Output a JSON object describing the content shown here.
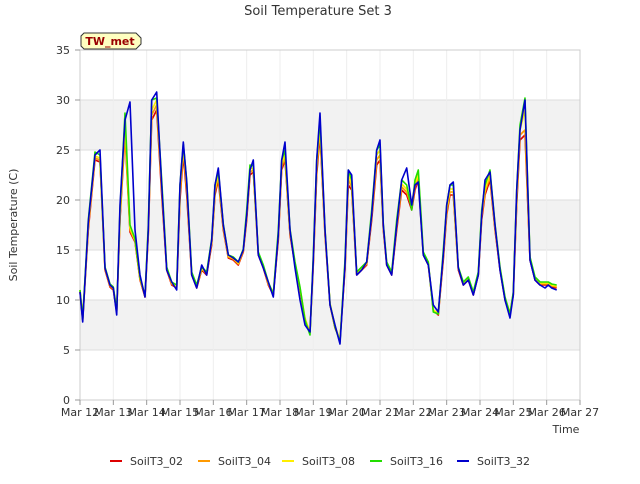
{
  "chart_data": {
    "type": "line",
    "title": "Soil Temperature Set 3",
    "xlabel": "Time",
    "ylabel": "Soil Temperature (C)",
    "station_badge": "TW_met",
    "xlim": [
      12,
      27
    ],
    "ylim": [
      0,
      35
    ],
    "x_ticks": [
      {
        "x": 12,
        "label": "Mar 12"
      },
      {
        "x": 13,
        "label": "Mar 13"
      },
      {
        "x": 14,
        "label": "Mar 14"
      },
      {
        "x": 15,
        "label": "Mar 15"
      },
      {
        "x": 16,
        "label": "Mar 16"
      },
      {
        "x": 17,
        "label": "Mar 17"
      },
      {
        "x": 18,
        "label": "Mar 18"
      },
      {
        "x": 19,
        "label": "Mar 19"
      },
      {
        "x": 20,
        "label": "Mar 20"
      },
      {
        "x": 21,
        "label": "Mar 21"
      },
      {
        "x": 22,
        "label": "Mar 22"
      },
      {
        "x": 23,
        "label": "Mar 23"
      },
      {
        "x": 24,
        "label": "Mar 24"
      },
      {
        "x": 25,
        "label": "Mar 25"
      },
      {
        "x": 26,
        "label": "Mar 26"
      },
      {
        "x": 27,
        "label": "Mar 27"
      }
    ],
    "y_ticks": [
      {
        "y": 0,
        "label": "0"
      },
      {
        "y": 5,
        "label": "5"
      },
      {
        "y": 10,
        "label": "10"
      },
      {
        "y": 15,
        "label": "15"
      },
      {
        "y": 20,
        "label": "20"
      },
      {
        "y": 25,
        "label": "25"
      },
      {
        "y": 30,
        "label": "30"
      },
      {
        "y": 35,
        "label": "35"
      }
    ],
    "grid": true,
    "legend_position": "bottom",
    "x": [
      12.0,
      12.08,
      12.25,
      12.45,
      12.6,
      12.75,
      12.9,
      13.0,
      13.1,
      13.2,
      13.35,
      13.5,
      13.65,
      13.8,
      13.95,
      14.05,
      14.15,
      14.3,
      14.45,
      14.6,
      14.75,
      14.9,
      15.0,
      15.1,
      15.2,
      15.35,
      15.5,
      15.65,
      15.8,
      15.95,
      16.05,
      16.15,
      16.3,
      16.45,
      16.6,
      16.75,
      16.9,
      17.0,
      17.1,
      17.2,
      17.35,
      17.5,
      17.65,
      17.8,
      17.95,
      18.05,
      18.15,
      18.3,
      18.45,
      18.6,
      18.75,
      18.9,
      19.0,
      19.1,
      19.2,
      19.35,
      19.5,
      19.65,
      19.8,
      19.95,
      20.05,
      20.15,
      20.3,
      20.45,
      20.6,
      20.75,
      20.9,
      21.0,
      21.1,
      21.2,
      21.35,
      21.5,
      21.65,
      21.8,
      21.95,
      22.05,
      22.15,
      22.3,
      22.45,
      22.6,
      22.75,
      22.9,
      23.0,
      23.1,
      23.2,
      23.35,
      23.5,
      23.65,
      23.8,
      23.95,
      24.05,
      24.15,
      24.3,
      24.45,
      24.6,
      24.75,
      24.9,
      25.0,
      25.1,
      25.2,
      25.35,
      25.5,
      25.65,
      25.8,
      25.95,
      26.05,
      26.15,
      26.3
    ],
    "series": [
      {
        "name": "SoilT3_02",
        "color": "#dd0000",
        "values": [
          10.8,
          8.0,
          17.0,
          24.0,
          23.8,
          13.0,
          11.3,
          11.0,
          8.8,
          18.0,
          26.5,
          16.8,
          15.8,
          12.0,
          10.3,
          16.5,
          28.0,
          29.0,
          20.5,
          13.0,
          11.5,
          11.2,
          20.0,
          24.5,
          20.5,
          12.5,
          11.2,
          13.0,
          12.5,
          15.5,
          20.5,
          22.0,
          17.0,
          14.2,
          14.0,
          13.5,
          14.8,
          18.0,
          22.5,
          22.8,
          14.5,
          13.2,
          11.5,
          10.5,
          16.0,
          23.0,
          24.0,
          16.5,
          13.5,
          11.0,
          8.0,
          6.8,
          13.5,
          22.5,
          26.5,
          16.5,
          9.5,
          7.2,
          6.0,
          13.0,
          21.5,
          21.0,
          12.5,
          13.0,
          13.5,
          18.0,
          23.5,
          24.0,
          17.0,
          13.5,
          12.5,
          17.0,
          21.0,
          20.5,
          19.0,
          21.0,
          22.0,
          14.5,
          13.5,
          9.0,
          8.5,
          14.0,
          18.5,
          20.5,
          20.5,
          13.0,
          11.5,
          12.0,
          10.5,
          12.5,
          18.0,
          20.5,
          22.0,
          17.0,
          13.0,
          10.0,
          8.5,
          10.5,
          19.5,
          26.0,
          26.5,
          14.0,
          12.0,
          11.5,
          11.5,
          11.5,
          11.3,
          11.2
        ]
      },
      {
        "name": "SoilT3_04",
        "color": "#ff9900",
        "values": [
          10.9,
          8.1,
          17.3,
          24.2,
          24.0,
          13.1,
          11.4,
          11.1,
          8.9,
          18.3,
          27.0,
          17.0,
          15.9,
          12.1,
          10.4,
          16.8,
          28.5,
          29.5,
          21.0,
          13.1,
          11.6,
          11.3,
          20.5,
          25.0,
          21.0,
          12.6,
          11.3,
          13.1,
          12.6,
          15.7,
          20.8,
          22.3,
          17.2,
          14.3,
          14.1,
          13.6,
          14.9,
          18.3,
          22.8,
          23.0,
          14.6,
          13.3,
          11.6,
          10.6,
          16.3,
          23.3,
          24.3,
          16.7,
          13.6,
          11.1,
          8.1,
          6.8,
          13.8,
          23.0,
          27.0,
          16.7,
          9.6,
          7.3,
          6.0,
          13.3,
          22.0,
          21.3,
          12.6,
          13.1,
          13.6,
          18.3,
          24.0,
          24.5,
          17.2,
          13.6,
          12.6,
          17.3,
          21.3,
          20.8,
          19.3,
          21.3,
          22.3,
          14.6,
          13.6,
          9.0,
          8.6,
          14.3,
          18.8,
          20.8,
          20.8,
          13.1,
          11.6,
          12.1,
          10.6,
          12.6,
          18.3,
          20.8,
          22.3,
          17.2,
          13.1,
          10.1,
          8.6,
          10.6,
          20.0,
          26.5,
          27.0,
          14.1,
          12.1,
          11.6,
          11.6,
          11.6,
          11.4,
          11.3
        ]
      },
      {
        "name": "SoilT3_08",
        "color": "#ffee00",
        "values": [
          11.0,
          8.2,
          17.6,
          24.4,
          24.2,
          13.2,
          11.5,
          11.2,
          9.0,
          18.6,
          27.5,
          17.2,
          16.0,
          12.2,
          10.5,
          17.1,
          29.0,
          30.0,
          21.5,
          13.2,
          11.7,
          11.4,
          21.0,
          25.3,
          21.5,
          12.7,
          11.4,
          13.2,
          12.7,
          15.9,
          21.1,
          22.6,
          17.4,
          14.4,
          14.2,
          13.7,
          15.0,
          18.6,
          23.1,
          23.2,
          14.7,
          13.4,
          11.7,
          10.7,
          16.6,
          23.6,
          24.6,
          16.9,
          13.7,
          11.2,
          8.2,
          6.7,
          14.1,
          23.5,
          27.5,
          16.9,
          9.7,
          7.4,
          6.0,
          13.6,
          22.5,
          21.6,
          12.7,
          13.2,
          13.7,
          18.6,
          24.5,
          25.0,
          17.4,
          13.7,
          12.7,
          17.6,
          21.6,
          21.1,
          19.6,
          21.6,
          22.6,
          14.7,
          13.7,
          9.0,
          8.7,
          14.6,
          19.1,
          21.1,
          21.1,
          13.2,
          11.7,
          12.2,
          10.7,
          12.7,
          18.6,
          21.1,
          22.6,
          17.4,
          13.2,
          10.2,
          8.7,
          10.7,
          20.5,
          27.0,
          29.0,
          14.2,
          12.2,
          11.7,
          11.7,
          11.7,
          11.5,
          11.4
        ]
      },
      {
        "name": "SoilT3_16",
        "color": "#22dd00",
        "values": [
          11.0,
          8.1,
          18.0,
          24.8,
          24.5,
          13.3,
          11.6,
          11.3,
          8.9,
          19.0,
          28.7,
          17.5,
          16.1,
          12.3,
          10.4,
          17.5,
          30.0,
          30.2,
          22.0,
          13.3,
          11.8,
          11.5,
          21.5,
          25.6,
          22.0,
          12.8,
          11.5,
          13.3,
          12.8,
          16.1,
          21.5,
          22.9,
          17.6,
          14.5,
          14.3,
          13.8,
          15.1,
          19.0,
          23.5,
          23.4,
          14.8,
          13.5,
          11.8,
          10.6,
          17.0,
          24.0,
          25.0,
          17.1,
          13.8,
          11.3,
          8.0,
          6.5,
          14.5,
          24.0,
          28.0,
          17.1,
          9.6,
          7.3,
          5.8,
          14.0,
          23.0,
          22.0,
          12.8,
          13.3,
          13.8,
          19.0,
          25.0,
          25.5,
          17.6,
          13.8,
          12.8,
          18.0,
          22.0,
          21.5,
          19.0,
          22.0,
          23.0,
          14.8,
          13.8,
          8.8,
          8.6,
          15.0,
          19.5,
          21.5,
          21.5,
          13.3,
          11.8,
          12.3,
          10.8,
          12.8,
          19.0,
          21.5,
          23.0,
          17.6,
          13.3,
          10.3,
          8.6,
          10.8,
          21.0,
          27.5,
          30.2,
          14.3,
          12.3,
          11.8,
          11.8,
          11.8,
          11.6,
          11.5
        ]
      },
      {
        "name": "SoilT3_32",
        "color": "#0000cc",
        "values": [
          10.8,
          7.8,
          17.8,
          24.5,
          25.0,
          13.2,
          11.5,
          11.2,
          8.5,
          19.5,
          28.0,
          29.8,
          17.0,
          12.5,
          10.3,
          17.0,
          30.0,
          30.8,
          21.5,
          13.0,
          11.8,
          11.0,
          21.5,
          25.8,
          21.8,
          12.5,
          11.2,
          13.5,
          12.5,
          16.0,
          21.5,
          23.2,
          17.5,
          14.5,
          14.2,
          13.8,
          15.0,
          18.5,
          23.0,
          24.0,
          14.5,
          13.2,
          11.8,
          10.3,
          16.5,
          24.0,
          25.8,
          17.0,
          13.2,
          10.0,
          7.5,
          6.8,
          14.0,
          24.0,
          28.7,
          17.0,
          9.5,
          7.5,
          5.6,
          13.5,
          23.0,
          22.5,
          12.5,
          13.0,
          13.8,
          18.5,
          25.0,
          26.0,
          17.5,
          13.5,
          12.5,
          17.5,
          22.0,
          23.2,
          19.5,
          21.5,
          21.8,
          14.5,
          13.5,
          9.5,
          8.8,
          14.5,
          19.5,
          21.5,
          21.8,
          13.2,
          11.5,
          12.0,
          10.5,
          12.5,
          18.5,
          22.0,
          22.8,
          17.5,
          13.0,
          10.0,
          8.2,
          10.5,
          21.0,
          27.0,
          30.0,
          14.0,
          12.0,
          11.5,
          11.2,
          11.5,
          11.2,
          11.0
        ]
      }
    ]
  }
}
